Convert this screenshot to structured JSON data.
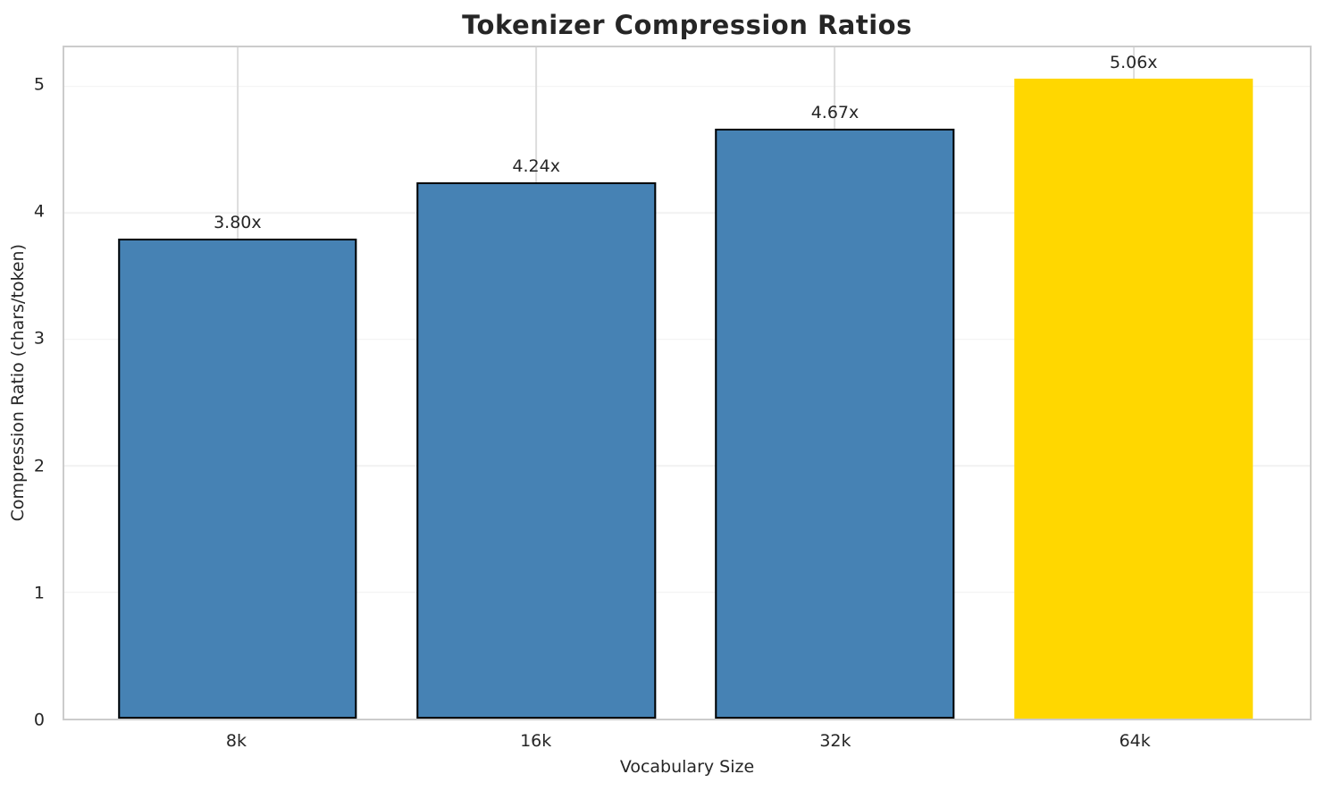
{
  "chart_data": {
    "type": "bar",
    "title": "Tokenizer Compression Ratios",
    "xlabel": "Vocabulary Size",
    "ylabel": "Compression Ratio (chars/token)",
    "categories": [
      "8k",
      "16k",
      "32k",
      "64k"
    ],
    "values": [
      3.8,
      4.24,
      4.67,
      5.06
    ],
    "bar_labels": [
      "3.80x",
      "4.24x",
      "4.67x",
      "5.06x"
    ],
    "bar_colors": [
      "#4682b4",
      "#4682b4",
      "#4682b4",
      "#ffd700"
    ],
    "bar_edge_colors": [
      "#000000",
      "#000000",
      "#000000",
      "none"
    ],
    "bar_width": 0.8,
    "yticks": [
      0,
      1,
      2,
      3,
      4,
      5
    ],
    "ylim": [
      0,
      5.31
    ],
    "xlim": [
      -0.58,
      3.59
    ],
    "grid": "both",
    "legend": "none",
    "highlighted_category": "64k"
  },
  "style": {
    "background": "#ffffff",
    "text_color": "#262626",
    "spine_color": "#cccccc",
    "vertical_grid_color": "#dcdcdc",
    "horizontal_grid_color": "#f2f2f2",
    "blue_bar_color": "#4682b4",
    "highlight_bar_color": "#ffd700",
    "bar_edge_color": "#000000"
  }
}
